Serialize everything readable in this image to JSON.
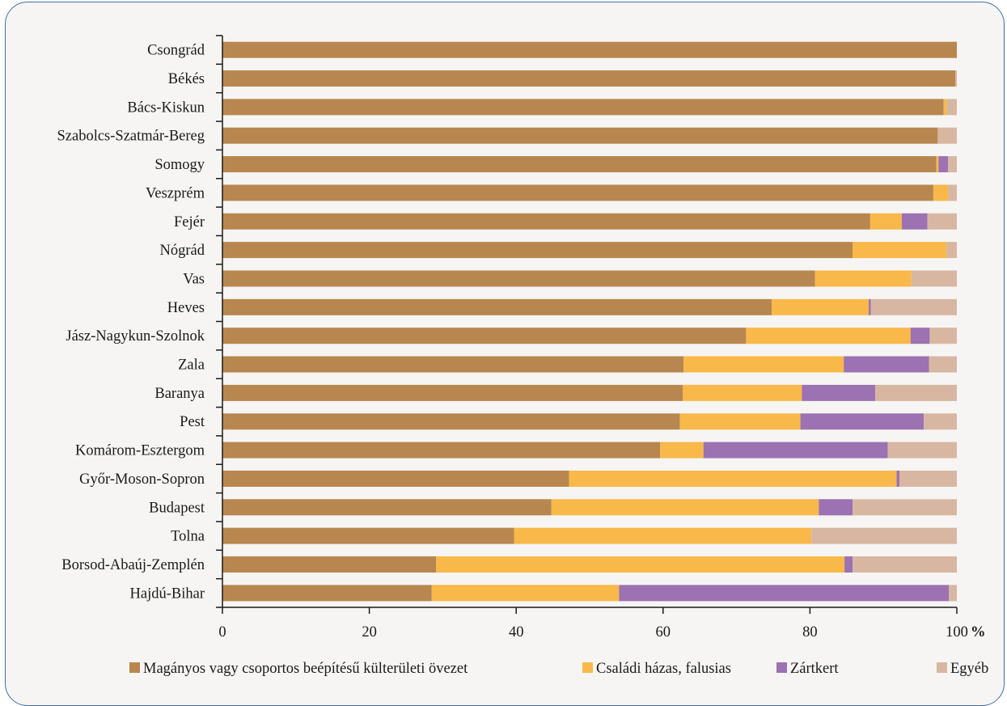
{
  "chart_data": {
    "type": "bar",
    "orientation": "horizontal",
    "stacked": true,
    "xlim": [
      0,
      100
    ],
    "x_ticks": [
      0,
      20,
      40,
      60,
      80,
      100
    ],
    "x_unit": "%",
    "legend_position": "bottom",
    "categories": [
      "Csongrád",
      "Békés",
      "Bács-Kiskun",
      "Szabolcs-Szatmár-Bereg",
      "Somogy",
      "Veszprém",
      "Fejér",
      "Nógrád",
      "Vas",
      "Heves",
      "Jász-Nagykun-Szolnok",
      "Zala",
      "Baranya",
      "Pest",
      "Komárom-Esztergom",
      "Győr-Moson-Sopron",
      "Budapest",
      "Tolna",
      "Borsod-Abaúj-Zemplén",
      "Hajdú-Bihar"
    ],
    "series": [
      {
        "name": "Magányos vagy csoportos beépítésű külterületi övezet",
        "color": "#b8874f",
        "values": [
          100,
          99.8,
          98.2,
          97.4,
          97.2,
          96.8,
          88.2,
          85.8,
          80.7,
          74.8,
          71.3,
          62.8,
          62.7,
          62.3,
          59.6,
          47.2,
          44.8,
          39.7,
          29.1,
          28.5
        ]
      },
      {
        "name": "Családi házas, falusias",
        "color": "#f9b84a",
        "values": [
          0,
          0,
          0.4,
          0,
          0.3,
          2.0,
          4.3,
          12.8,
          13.1,
          13.2,
          22.4,
          21.8,
          16.2,
          16.4,
          5.9,
          44.6,
          36.4,
          40.5,
          55.6,
          25.5
        ]
      },
      {
        "name": "Zártkert",
        "color": "#9c72b2",
        "values": [
          0,
          0,
          0,
          0,
          1.3,
          0,
          3.5,
          0,
          0,
          0.3,
          2.6,
          11.6,
          10.0,
          16.8,
          25.1,
          0.4,
          4.6,
          0,
          1.1,
          44.9
        ]
      },
      {
        "name": "Egyéb",
        "color": "#d8b7a2",
        "values": [
          0,
          0.2,
          1.4,
          2.6,
          1.2,
          1.2,
          4.0,
          1.4,
          6.2,
          11.7,
          3.7,
          3.8,
          11.1,
          4.5,
          9.4,
          7.8,
          14.2,
          19.8,
          14.2,
          1.1
        ]
      }
    ]
  }
}
